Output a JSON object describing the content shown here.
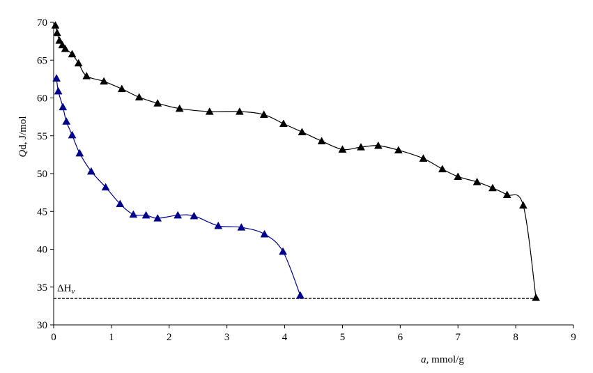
{
  "chart_data": {
    "type": "line",
    "xlabel_italic": "a",
    "xlabel_rest": ", mmol/g",
    "ylabel_italic": "Q",
    "ylabel_rest": "d, J/mol",
    "xlim": [
      0,
      9
    ],
    "ylim": [
      30,
      70
    ],
    "xticks": [
      "0",
      "1",
      "2",
      "3",
      "4",
      "5",
      "6",
      "7",
      "8",
      "9"
    ],
    "yticks": [
      "30",
      "35",
      "40",
      "45",
      "50",
      "55",
      "60",
      "65",
      "70"
    ],
    "grid": false,
    "legend": "none",
    "reference_line": {
      "label_main": "ΔH",
      "label_sub": "v",
      "y": 33.5,
      "x_start": 0,
      "x_end": 8.35,
      "style": "dashed"
    },
    "series": [
      {
        "color": "#000000",
        "marker": "triangle",
        "x": [
          0.03,
          0.06,
          0.1,
          0.15,
          0.2,
          0.32,
          0.43,
          0.57,
          0.87,
          1.18,
          1.48,
          1.8,
          2.18,
          2.7,
          3.22,
          3.64,
          3.98,
          4.3,
          4.64,
          5.0,
          5.32,
          5.62,
          5.97,
          6.4,
          6.73,
          7.0,
          7.33,
          7.6,
          7.85,
          8.13,
          8.35
        ],
        "y": [
          69.6,
          68.6,
          67.6,
          67.0,
          66.5,
          65.8,
          64.6,
          62.9,
          62.2,
          61.2,
          60.1,
          59.3,
          58.6,
          58.2,
          58.2,
          57.8,
          56.6,
          55.5,
          54.3,
          53.2,
          53.5,
          53.7,
          53.1,
          52.0,
          50.6,
          49.6,
          48.9,
          48.1,
          47.2,
          45.8,
          33.6
        ]
      },
      {
        "color": "#00008B",
        "marker": "triangle",
        "x": [
          0.05,
          0.08,
          0.16,
          0.22,
          0.32,
          0.45,
          0.65,
          0.9,
          1.15,
          1.38,
          1.6,
          1.8,
          2.15,
          2.43,
          2.85,
          3.25,
          3.65,
          3.97,
          4.27
        ],
        "y": [
          62.6,
          60.9,
          58.8,
          56.9,
          55.1,
          52.7,
          50.3,
          48.2,
          46.0,
          44.6,
          44.5,
          44.1,
          44.5,
          44.4,
          43.1,
          42.9,
          42.0,
          39.7,
          33.9
        ]
      }
    ]
  }
}
